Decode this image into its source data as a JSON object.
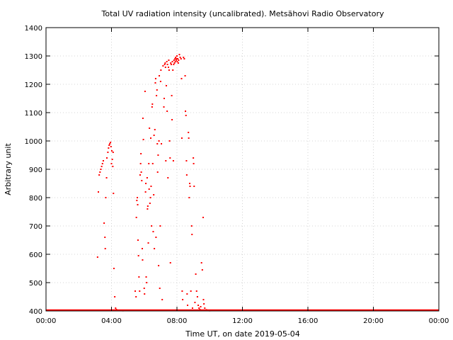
{
  "chart_data": {
    "type": "scatter",
    "title": "Total UV radiation intensity (uncalibrated). Metsähovi Radio Observatory",
    "xlabel": "Time UT, on date 2019-05-04",
    "ylabel": "Arbitrary unit",
    "xlim": [
      0,
      24
    ],
    "ylim": [
      400,
      1400
    ],
    "x_ticks": [
      {
        "value": 0,
        "label": "00:00"
      },
      {
        "value": 4,
        "label": "04:00"
      },
      {
        "value": 8,
        "label": "08:00"
      },
      {
        "value": 12,
        "label": "12:00"
      },
      {
        "value": 16,
        "label": "16:00"
      },
      {
        "value": 20,
        "label": "20:00"
      },
      {
        "value": 24,
        "label": "00:00"
      }
    ],
    "y_ticks": [
      400,
      500,
      600,
      700,
      800,
      900,
      1000,
      1100,
      1200,
      1300,
      1400
    ],
    "grid": true,
    "marker_color": "#ff0000",
    "series": [
      {
        "baseline": {
          "y": 400,
          "x_start": 0,
          "x_end": 24
        },
        "points": [
          [
            3.15,
            590
          ],
          [
            3.2,
            820
          ],
          [
            3.25,
            880
          ],
          [
            3.3,
            890
          ],
          [
            3.35,
            900
          ],
          [
            3.4,
            910
          ],
          [
            3.45,
            920
          ],
          [
            3.5,
            930
          ],
          [
            3.55,
            710
          ],
          [
            3.6,
            660
          ],
          [
            3.62,
            620
          ],
          [
            3.65,
            800
          ],
          [
            3.7,
            870
          ],
          [
            3.72,
            940
          ],
          [
            3.78,
            960
          ],
          [
            3.82,
            975
          ],
          [
            3.86,
            985
          ],
          [
            3.9,
            990
          ],
          [
            3.94,
            995
          ],
          [
            3.97,
            980
          ],
          [
            4.0,
            920
          ],
          [
            4.02,
            965
          ],
          [
            4.05,
            935
          ],
          [
            4.08,
            910
          ],
          [
            4.1,
            960
          ],
          [
            4.12,
            815
          ],
          [
            4.15,
            550
          ],
          [
            4.2,
            450
          ],
          [
            4.25,
            410
          ],
          [
            4.3,
            405
          ],
          [
            4.5,
            402
          ],
          [
            4.7,
            401
          ],
          [
            5.45,
            470
          ],
          [
            5.5,
            450
          ],
          [
            5.52,
            730
          ],
          [
            5.55,
            790
          ],
          [
            5.58,
            800
          ],
          [
            5.6,
            775
          ],
          [
            5.62,
            650
          ],
          [
            5.65,
            595
          ],
          [
            5.68,
            520
          ],
          [
            5.72,
            470
          ],
          [
            5.75,
            880
          ],
          [
            5.78,
            920
          ],
          [
            5.8,
            955
          ],
          [
            5.82,
            890
          ],
          [
            5.85,
            860
          ],
          [
            5.88,
            620
          ],
          [
            5.9,
            580
          ],
          [
            5.92,
            1080
          ],
          [
            5.95,
            1005
          ],
          [
            6.0,
            480
          ],
          [
            6.02,
            460
          ],
          [
            6.05,
            1175
          ],
          [
            6.08,
            820
          ],
          [
            6.1,
            850
          ],
          [
            6.12,
            520
          ],
          [
            6.15,
            500
          ],
          [
            6.18,
            870
          ],
          [
            6.2,
            760
          ],
          [
            6.22,
            770
          ],
          [
            6.25,
            640
          ],
          [
            6.28,
            920
          ],
          [
            6.3,
            830
          ],
          [
            6.32,
            1045
          ],
          [
            6.35,
            780
          ],
          [
            6.38,
            800
          ],
          [
            6.4,
            1010
          ],
          [
            6.42,
            840
          ],
          [
            6.45,
            700
          ],
          [
            6.48,
            1120
          ],
          [
            6.5,
            1130
          ],
          [
            6.52,
            920
          ],
          [
            6.55,
            680
          ],
          [
            6.58,
            810
          ],
          [
            6.6,
            1020
          ],
          [
            6.62,
            620
          ],
          [
            6.65,
            1040
          ],
          [
            6.68,
            1205
          ],
          [
            6.7,
            1220
          ],
          [
            6.72,
            660
          ],
          [
            6.75,
            1160
          ],
          [
            6.78,
            1180
          ],
          [
            6.8,
            990
          ],
          [
            6.82,
            890
          ],
          [
            6.85,
            950
          ],
          [
            6.88,
            560
          ],
          [
            6.9,
            1000
          ],
          [
            6.92,
            1230
          ],
          [
            6.95,
            480
          ],
          [
            6.98,
            700
          ],
          [
            7.0,
            1210
          ],
          [
            7.02,
            1250
          ],
          [
            7.05,
            990
          ],
          [
            7.1,
            440
          ],
          [
            7.15,
            1265
          ],
          [
            7.2,
            1120
          ],
          [
            7.22,
            1150
          ],
          [
            7.25,
            1270
          ],
          [
            7.28,
            1275
          ],
          [
            7.3,
            1260
          ],
          [
            7.32,
            930
          ],
          [
            7.35,
            1195
          ],
          [
            7.38,
            1280
          ],
          [
            7.4,
            1105
          ],
          [
            7.42,
            1270
          ],
          [
            7.45,
            870
          ],
          [
            7.48,
            1260
          ],
          [
            7.5,
            1285
          ],
          [
            7.52,
            1250
          ],
          [
            7.55,
            1000
          ],
          [
            7.58,
            940
          ],
          [
            7.6,
            570
          ],
          [
            7.62,
            1275
          ],
          [
            7.65,
            1270
          ],
          [
            7.68,
            1160
          ],
          [
            7.7,
            1075
          ],
          [
            7.72,
            1280
          ],
          [
            7.75,
            1250
          ],
          [
            7.78,
            930
          ],
          [
            7.8,
            1270
          ],
          [
            7.82,
            1285
          ],
          [
            7.85,
            1275
          ],
          [
            7.88,
            1290
          ],
          [
            7.9,
            1280
          ],
          [
            7.92,
            1295
          ],
          [
            7.95,
            1285
          ],
          [
            7.98,
            1290
          ],
          [
            8.0,
            1300
          ],
          [
            8.02,
            1280
          ],
          [
            8.05,
            1290
          ],
          [
            8.08,
            1275
          ],
          [
            8.1,
            1285
          ],
          [
            8.15,
            1305
          ],
          [
            8.2,
            1295
          ],
          [
            8.25,
            1290
          ],
          [
            8.28,
            1220
          ],
          [
            8.3,
            1010
          ],
          [
            8.32,
            470
          ],
          [
            8.35,
            440
          ],
          [
            8.4,
            1295
          ],
          [
            8.45,
            1290
          ],
          [
            8.5,
            1230
          ],
          [
            8.52,
            1105
          ],
          [
            8.55,
            1090
          ],
          [
            8.58,
            930
          ],
          [
            8.6,
            880
          ],
          [
            8.62,
            460
          ],
          [
            8.65,
            420
          ],
          [
            8.7,
            1030
          ],
          [
            8.72,
            1010
          ],
          [
            8.75,
            800
          ],
          [
            8.78,
            850
          ],
          [
            8.8,
            840
          ],
          [
            8.85,
            470
          ],
          [
            8.9,
            700
          ],
          [
            8.92,
            670
          ],
          [
            8.95,
            410
          ],
          [
            9.0,
            940
          ],
          [
            9.02,
            920
          ],
          [
            9.05,
            840
          ],
          [
            9.1,
            430
          ],
          [
            9.15,
            530
          ],
          [
            9.2,
            470
          ],
          [
            9.25,
            450
          ],
          [
            9.3,
            420
          ],
          [
            9.35,
            410
          ],
          [
            9.4,
            405
          ],
          [
            9.45,
            415
          ],
          [
            9.5,
            570
          ],
          [
            9.55,
            545
          ],
          [
            9.6,
            730
          ],
          [
            9.62,
            440
          ],
          [
            9.65,
            425
          ],
          [
            9.7,
            410
          ],
          [
            9.8,
            404
          ],
          [
            9.9,
            402
          ],
          [
            10.0,
            401
          ]
        ]
      }
    ]
  }
}
